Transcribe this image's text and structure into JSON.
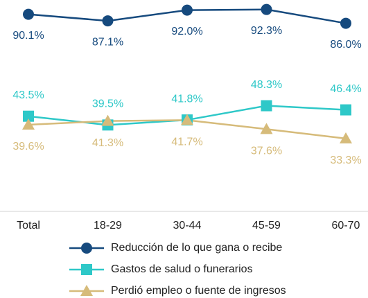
{
  "chart_data": {
    "type": "line",
    "categories": [
      "Total",
      "18-29",
      "30-44",
      "45-59",
      "60-70"
    ],
    "ylim": [
      0,
      96
    ],
    "series": [
      {
        "name": "Reducción de lo que gana o recibe",
        "color": "#164a7e",
        "marker": "circle",
        "values": [
          90.1,
          87.1,
          92.0,
          92.3,
          86.0
        ],
        "value_labels": [
          "90.1%",
          "87.1%",
          "92.0%",
          "92.3%",
          "86.0%"
        ]
      },
      {
        "name": "Gastos de salud o funerarios",
        "color": "#2ec8c8",
        "marker": "square",
        "values": [
          43.5,
          39.5,
          41.8,
          48.3,
          46.4
        ],
        "value_labels": [
          "43.5%",
          "39.5%",
          "41.8%",
          "48.3%",
          "46.4%"
        ]
      },
      {
        "name": "Perdió empleo o fuente de ingresos",
        "color": "#d6bb7a",
        "marker": "triangle",
        "values": [
          39.6,
          41.3,
          41.7,
          37.6,
          33.3
        ],
        "value_labels": [
          "39.6%",
          "41.3%",
          "41.7%",
          "37.6%",
          "33.3%"
        ]
      }
    ]
  }
}
